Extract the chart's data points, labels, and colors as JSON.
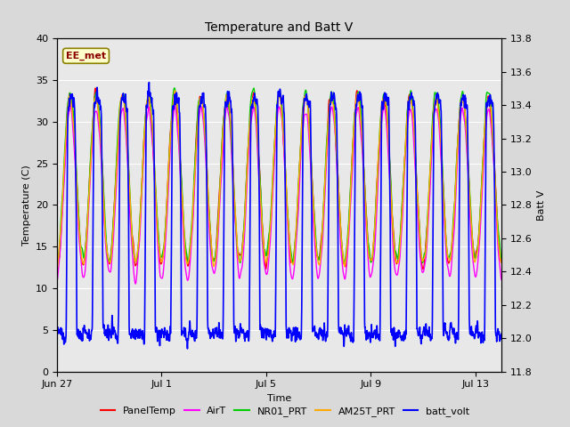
{
  "title": "Temperature and Batt V",
  "xlabel": "Time",
  "ylabel_left": "Temperature (C)",
  "ylabel_right": "Batt V",
  "annotation_text": "EE_met",
  "annotation_color": "#8B0000",
  "annotation_bg": "#ffffcc",
  "annotation_border": "#8B8000",
  "xlim_start": 0,
  "xlim_end": 17,
  "ylim_left": [
    0,
    40
  ],
  "ylim_right": [
    11.8,
    13.8
  ],
  "yticks_left": [
    0,
    5,
    10,
    15,
    20,
    25,
    30,
    35,
    40
  ],
  "yticks_right": [
    11.8,
    12.0,
    12.2,
    12.4,
    12.6,
    12.8,
    13.0,
    13.2,
    13.4,
    13.6,
    13.8
  ],
  "xtick_labels": [
    "Jun 27",
    "Jul 1",
    "Jul 5",
    "Jul 9",
    "Jul 13"
  ],
  "xtick_positions": [
    0,
    4,
    8,
    12,
    16
  ],
  "bg_color": "#d9d9d9",
  "plot_bg_color": "#e8e8e8",
  "grid_color": "#ffffff",
  "legend_entries": [
    "PanelTemp",
    "AirT",
    "NR01_PRT",
    "AM25T_PRT",
    "batt_volt"
  ],
  "legend_colors": [
    "#ff0000",
    "#ff00ff",
    "#00cc00",
    "#ffaa00",
    "#0000ff"
  ],
  "line_widths": [
    1.0,
    1.0,
    1.0,
    1.0,
    1.2
  ]
}
